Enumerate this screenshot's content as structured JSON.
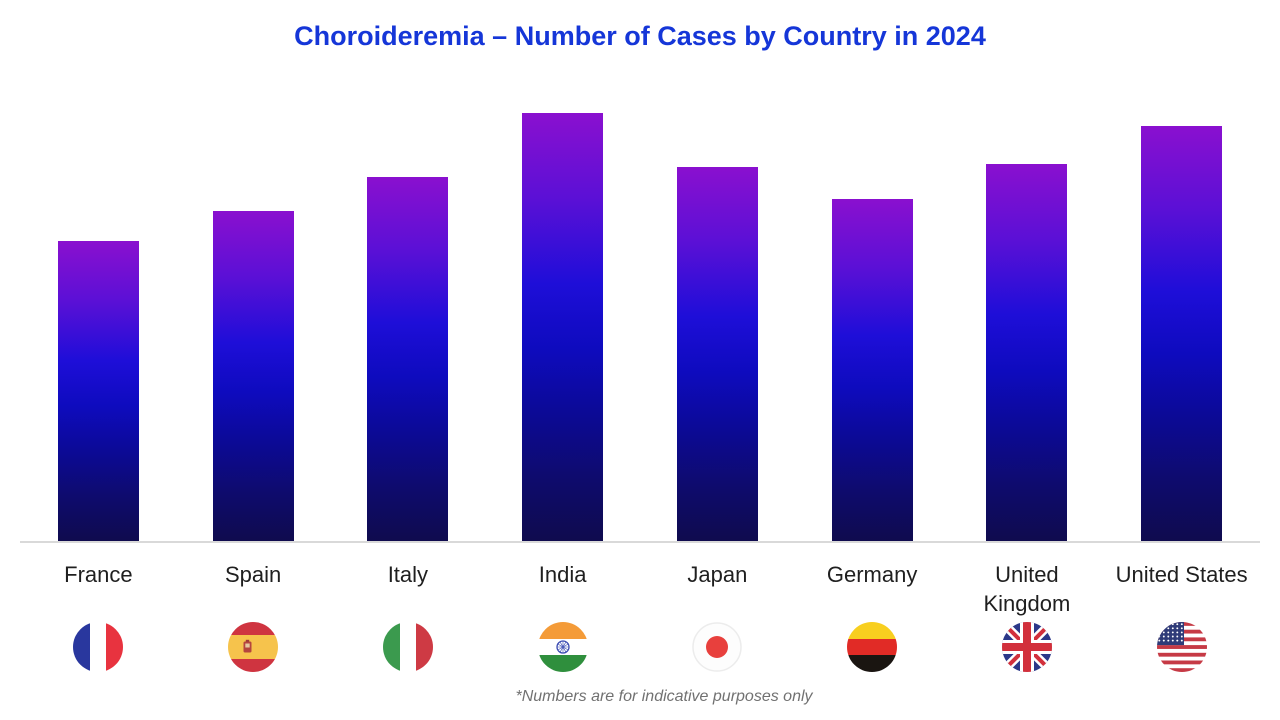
{
  "title": "Choroideremia – Number of Cases by Country in 2024",
  "title_color": "#1536d8",
  "footnote": "*Numbers are for indicative purposes only",
  "chart_data": {
    "type": "bar",
    "title": "Choroideremia – Number of Cases by Country in 2024",
    "categories": [
      "France",
      "Spain",
      "Italy",
      "India",
      "Japan",
      "Germany",
      "United Kingdom",
      "United States"
    ],
    "values": [
      70,
      77,
      85,
      100,
      87.5,
      80,
      88,
      97
    ],
    "xlabel": "",
    "ylabel": "",
    "ylim": [
      0,
      100
    ],
    "grid": false,
    "legend": false,
    "data_labels": false,
    "bar_gradient_top": "#8a10cf",
    "bar_gradient_mid": "#1e0ed8",
    "bar_gradient_bottom": "#0f0b4e",
    "baseline_color": "#d9d9d9",
    "flags": [
      "france-flag-icon",
      "spain-flag-icon",
      "italy-flag-icon",
      "india-flag-icon",
      "japan-flag-icon",
      "germany-flag-icon",
      "uk-flag-icon",
      "us-flag-icon"
    ]
  }
}
